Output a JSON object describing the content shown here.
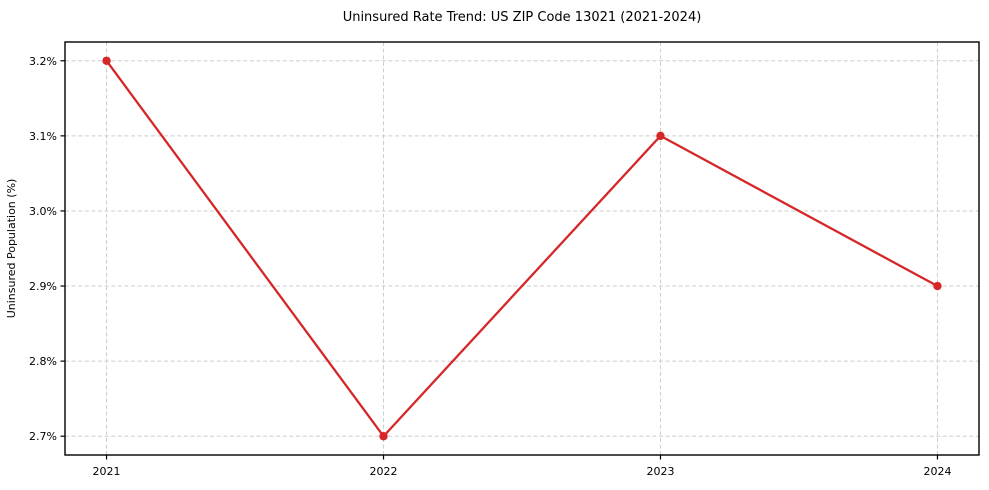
{
  "chart_data": {
    "type": "line",
    "title": "Uninsured Rate Trend: US ZIP Code 13021 (2021-2024)",
    "xlabel": "",
    "ylabel": "Uninsured Population (%)",
    "x": [
      2021,
      2022,
      2023,
      2024
    ],
    "values": [
      3.2,
      2.7,
      3.1,
      2.9
    ],
    "series": [
      {
        "name": "Uninsured Rate",
        "values": [
          3.2,
          2.7,
          3.1,
          2.9
        ]
      }
    ],
    "x_tick_labels": [
      "2021",
      "2022",
      "2023",
      "2024"
    ],
    "y_ticks": [
      2.7,
      2.8,
      2.9,
      3.0,
      3.1,
      3.2
    ],
    "y_tick_labels": [
      "2.7%",
      "2.8%",
      "2.9%",
      "3.0%",
      "3.1%",
      "3.2%"
    ],
    "xlim": [
      2020.85,
      2024.15
    ],
    "ylim": [
      2.675,
      3.225
    ],
    "grid": true,
    "grid_style": "dashed",
    "legend_position": "none",
    "colors": {
      "line": "#d62728",
      "marker": "#d62728",
      "grid": "#cdcdcd",
      "axis": "#000000",
      "tick_text": "#000000",
      "background": "#ffffff"
    }
  }
}
